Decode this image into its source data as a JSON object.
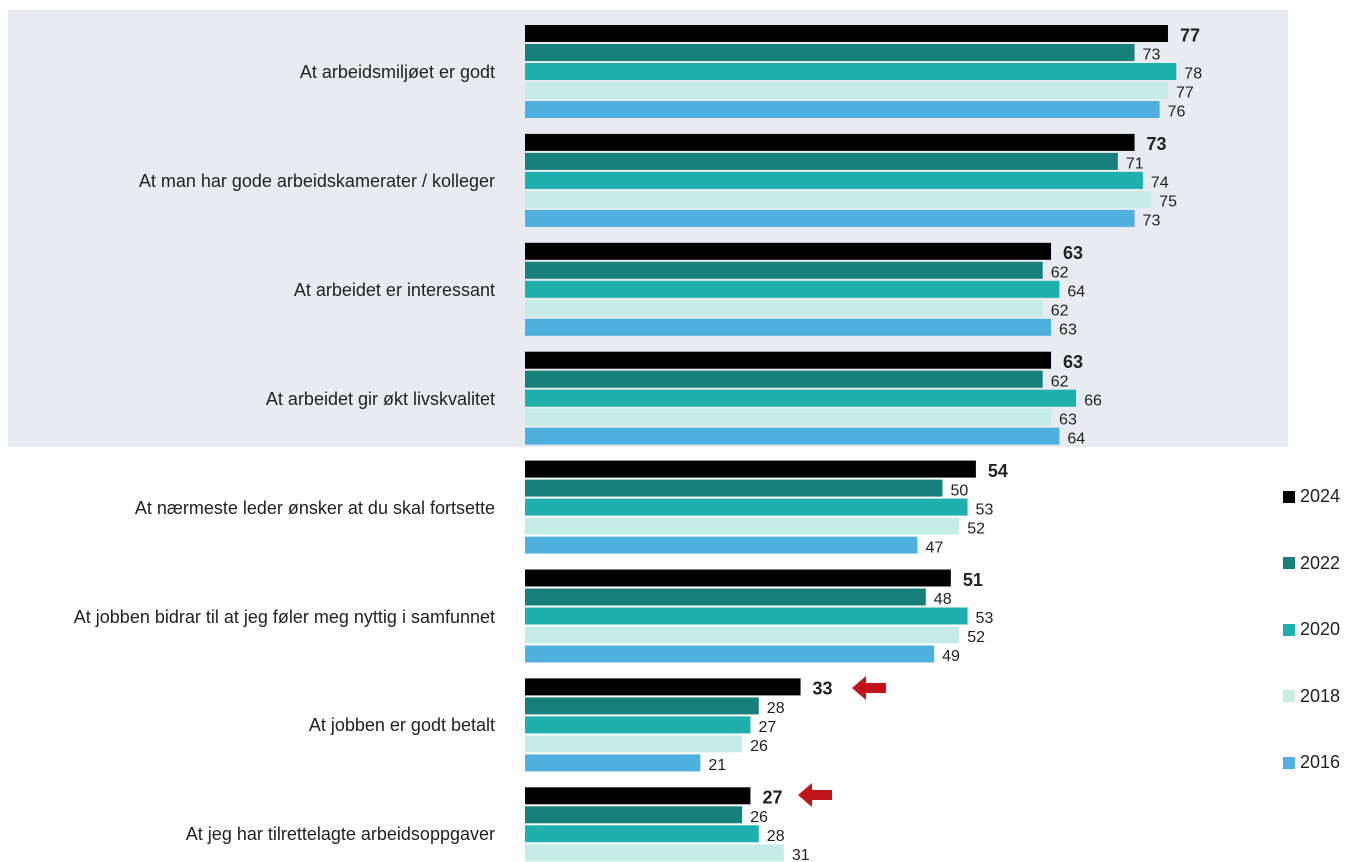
{
  "chart_data": {
    "type": "bar",
    "orientation": "horizontal",
    "categories": [
      "At arbeidsmiljøet er godt",
      "At man har gode arbeidskamerater / kolleger",
      "At arbeidet er interessant",
      "At arbeidet gir økt livskvalitet",
      "At nærmeste leder ønsker at du skal fortsette",
      "At jobben bidrar til at jeg føler meg nyttig i samfunnet",
      "At jobben er godt betalt",
      "At jeg har tilrettelagte arbeidsoppgaver"
    ],
    "series": [
      {
        "name": "2024",
        "color": "#000000",
        "values": [
          77,
          73,
          63,
          63,
          54,
          51,
          33,
          27
        ]
      },
      {
        "name": "2022",
        "color": "#17807a",
        "values": [
          73,
          71,
          62,
          62,
          50,
          48,
          28,
          26
        ]
      },
      {
        "name": "2020",
        "color": "#1fb0ad",
        "values": [
          78,
          74,
          64,
          66,
          53,
          53,
          27,
          28
        ]
      },
      {
        "name": "2018",
        "color": "#c5ede6",
        "values": [
          77,
          75,
          62,
          63,
          52,
          52,
          26,
          31
        ]
      },
      {
        "name": "2016",
        "color": "#4fb0e0",
        "values": [
          76,
          73,
          63,
          64,
          47,
          49,
          21,
          null
        ]
      }
    ],
    "legend": "right"
  }
}
